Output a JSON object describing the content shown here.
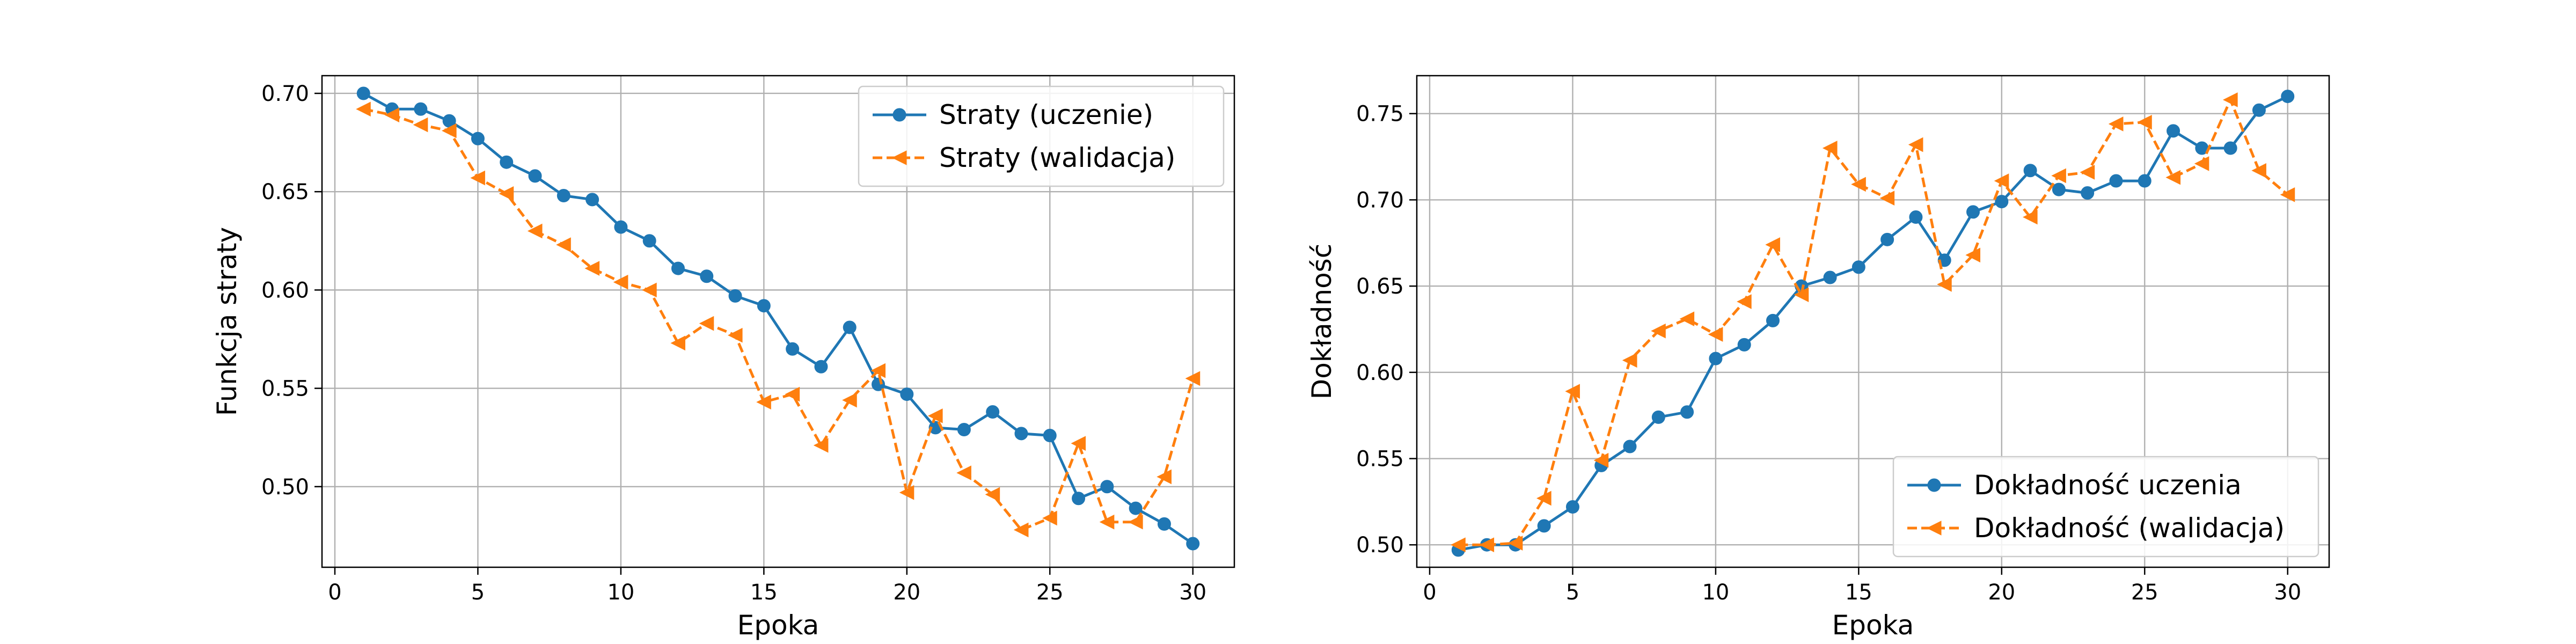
{
  "chart_data": [
    {
      "type": "line",
      "title": "",
      "xlabel": "Epoka",
      "ylabel": "Funkcja straty",
      "xlim": [
        -0.45,
        31.45
      ],
      "ylim": [
        0.459,
        0.709
      ],
      "x_ticks": [
        0,
        5,
        10,
        15,
        20,
        25,
        30
      ],
      "y_ticks": [
        0.5,
        0.55,
        0.6,
        0.65,
        0.7
      ],
      "y_tick_decimals": 2,
      "grid": true,
      "legend_position": "top-right",
      "x": [
        1,
        2,
        3,
        4,
        5,
        6,
        7,
        8,
        9,
        10,
        11,
        12,
        13,
        14,
        15,
        16,
        17,
        18,
        19,
        20,
        21,
        22,
        23,
        24,
        25,
        26,
        27,
        28,
        29,
        30
      ],
      "series": [
        {
          "name": "Straty (uczenie)",
          "color": "#1f77b4",
          "line_style": "solid",
          "marker": "circle",
          "values": [
            0.7,
            0.692,
            0.692,
            0.686,
            0.677,
            0.665,
            0.658,
            0.648,
            0.646,
            0.632,
            0.625,
            0.611,
            0.607,
            0.597,
            0.592,
            0.57,
            0.561,
            0.581,
            0.552,
            0.547,
            0.53,
            0.529,
            0.538,
            0.527,
            0.526,
            0.494,
            0.5,
            0.489,
            0.481,
            0.471
          ]
        },
        {
          "name": "Straty (walidacja)",
          "color": "#ff7f0e",
          "line_style": "dashed",
          "marker": "triangle-left",
          "values": [
            0.692,
            0.689,
            0.684,
            0.681,
            0.657,
            0.649,
            0.63,
            0.623,
            0.611,
            0.604,
            0.6,
            0.573,
            0.583,
            0.577,
            0.543,
            0.547,
            0.521,
            0.544,
            0.559,
            0.497,
            0.536,
            0.507,
            0.496,
            0.478,
            0.484,
            0.522,
            0.482,
            0.482,
            0.505,
            0.555
          ]
        }
      ]
    },
    {
      "type": "line",
      "title": "",
      "xlabel": "Epoka",
      "ylabel": "Dokładność",
      "xlim": [
        -0.45,
        31.45
      ],
      "ylim": [
        0.487,
        0.772
      ],
      "x_ticks": [
        0,
        5,
        10,
        15,
        20,
        25,
        30
      ],
      "y_ticks": [
        0.5,
        0.55,
        0.6,
        0.65,
        0.7,
        0.75
      ],
      "y_tick_decimals": 2,
      "grid": true,
      "legend_position": "bottom-right",
      "x": [
        1,
        2,
        3,
        4,
        5,
        6,
        7,
        8,
        9,
        10,
        11,
        12,
        13,
        14,
        15,
        16,
        17,
        18,
        19,
        20,
        21,
        22,
        23,
        24,
        25,
        26,
        27,
        28,
        29,
        30
      ],
      "series": [
        {
          "name": "Dokładność uczenia",
          "color": "#1f77b4",
          "line_style": "solid",
          "marker": "circle",
          "values": [
            0.497,
            0.5,
            0.5,
            0.511,
            0.522,
            0.546,
            0.557,
            0.574,
            0.577,
            0.608,
            0.616,
            0.63,
            0.65,
            0.655,
            0.661,
            0.677,
            0.69,
            0.665,
            0.693,
            0.699,
            0.717,
            0.706,
            0.704,
            0.711,
            0.711,
            0.74,
            0.73,
            0.73,
            0.752,
            0.76
          ]
        },
        {
          "name": "Dokładność (walidacja)",
          "color": "#ff7f0e",
          "line_style": "dashed",
          "marker": "triangle-left",
          "values": [
            0.5,
            0.5,
            0.501,
            0.527,
            0.589,
            0.549,
            0.607,
            0.624,
            0.631,
            0.622,
            0.641,
            0.674,
            0.645,
            0.73,
            0.709,
            0.701,
            0.732,
            0.651,
            0.668,
            0.711,
            0.69,
            0.714,
            0.716,
            0.744,
            0.745,
            0.713,
            0.721,
            0.758,
            0.717,
            0.703
          ]
        }
      ]
    }
  ]
}
